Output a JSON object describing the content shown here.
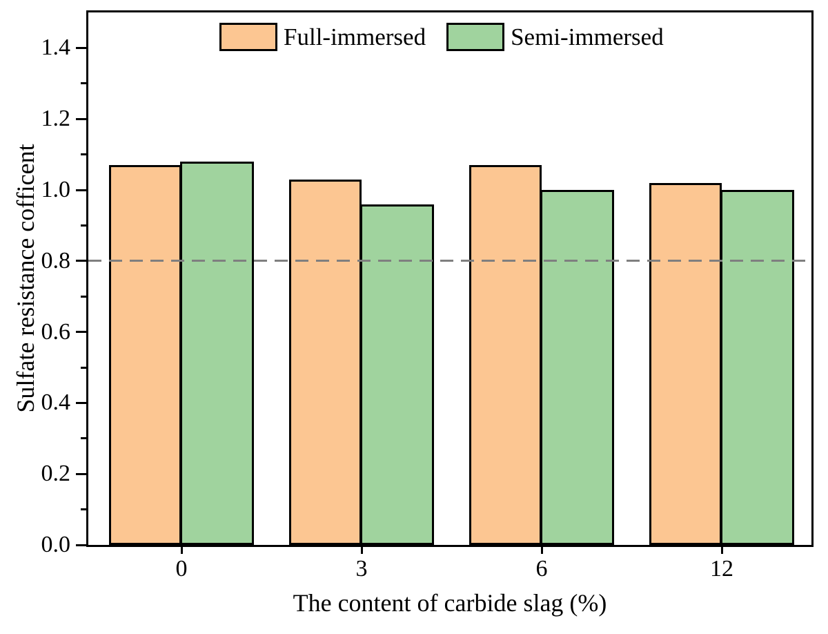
{
  "chart_data": {
    "type": "bar",
    "title": "",
    "xlabel": "The content of carbide slag (%)",
    "ylabel": "Sulfate resistance cofficent",
    "categories": [
      "0",
      "3",
      "6",
      "12"
    ],
    "series": [
      {
        "name": "Full-immersed",
        "color": "#fcc692",
        "values": [
          1.07,
          1.03,
          1.07,
          1.02
        ]
      },
      {
        "name": "Semi-immersed",
        "color": "#a0d39e",
        "values": [
          1.08,
          0.96,
          1.0,
          1.0
        ]
      }
    ],
    "bar_edge_color": "#000000",
    "ylim": [
      0,
      1.5
    ],
    "ytick_values": [
      0.0,
      0.2,
      0.4,
      0.6,
      0.8,
      1.0,
      1.2,
      1.4
    ],
    "ytick_labels": [
      "0.0",
      "0.2",
      "0.4",
      "0.6",
      "0.8",
      "1.0",
      "1.2",
      "1.4"
    ],
    "ytick_minor_values": [
      0.1,
      0.3,
      0.5,
      0.7,
      0.9,
      1.1,
      1.3
    ],
    "grid": false,
    "reference_line": {
      "y": 0.8,
      "color": "#7f7f7f",
      "style": "dashed"
    },
    "legend": {
      "position": "top-center-inside",
      "entries": [
        {
          "label": "Full-immersed",
          "color": "#fcc692"
        },
        {
          "label": "Semi-immersed",
          "color": "#a0d39e"
        }
      ]
    }
  }
}
